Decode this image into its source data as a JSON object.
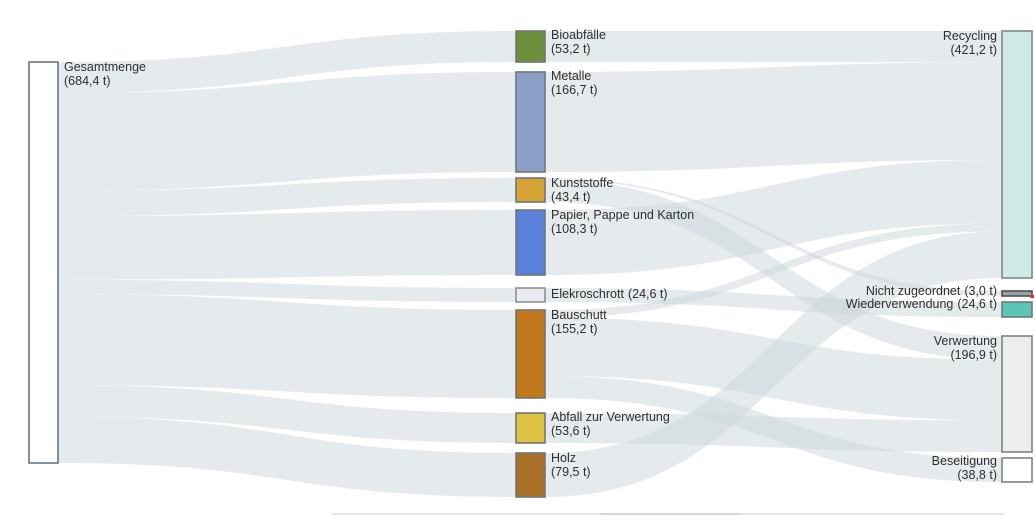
{
  "chart_data": {
    "type": "sankey",
    "unit": "t",
    "layout_hints": {
      "columns": [
        "total",
        "waste-category",
        "disposal-route"
      ],
      "flow_color": "#ccd6da",
      "flow_opacity": 0.5,
      "background": "#ffffff"
    },
    "nodes": [
      {
        "id": "gesamtmenge",
        "name": "Gesamtmenge",
        "amount": "(684,4 t)",
        "value": 684.4,
        "fill": "#ffffff",
        "stroke": "#66738c"
      },
      {
        "id": "bioabfaelle",
        "name": "Bioabfälle",
        "amount": "(53,2 t)",
        "value": 53.2,
        "fill": "#6d8f3b",
        "stroke": "#71767a"
      },
      {
        "id": "metalle",
        "name": "Metalle",
        "amount": "(166,7 t)",
        "value": 166.7,
        "fill": "#8d9fc7",
        "stroke": "#71767a"
      },
      {
        "id": "kunststoffe",
        "name": "Kunststoffe",
        "amount": "(43,4 t)",
        "value": 43.4,
        "fill": "#d6a335",
        "stroke": "#71767a"
      },
      {
        "id": "papier",
        "name": "Papier, Pappe und Karton",
        "amount": "(108,3 t)",
        "value": 108.3,
        "fill": "#5a80d9",
        "stroke": "#71767a"
      },
      {
        "id": "elekroschrott",
        "name": "Elekroschrott",
        "amount": "(24,6 t)",
        "value": 24.6,
        "fill": "#eaebf2",
        "stroke": "#8d9296"
      },
      {
        "id": "bauschutt",
        "name": "Bauschutt",
        "amount": "(155,2 t)",
        "value": 155.2,
        "fill": "#c1771c",
        "stroke": "#71767a"
      },
      {
        "id": "abfall_zur_verwertung",
        "name": "Abfall zur Verwertung",
        "amount": "(53,6 t)",
        "value": 53.6,
        "fill": "#ddc243",
        "stroke": "#71767a"
      },
      {
        "id": "holz",
        "name": "Holz",
        "amount": "(79,5 t)",
        "value": 79.5,
        "fill": "#a87028",
        "stroke": "#71767a"
      },
      {
        "id": "recycling",
        "name": "Recycling",
        "amount": "(421,2 t)",
        "value": 421.2,
        "fill": "#cfe9e4",
        "stroke": "#7d8a88"
      },
      {
        "id": "nicht_zugeordnet",
        "name": "Nicht zugeordnet",
        "amount": "(3,0 t)",
        "value": 3.0,
        "fill": "#9aa0a3",
        "stroke": "#4a4f52"
      },
      {
        "id": "wiederverwendung",
        "name": "Wiederverwendung",
        "amount": "(24,6 t)",
        "value": 24.6,
        "fill": "#5ec4b6",
        "stroke": "#71767a"
      },
      {
        "id": "verwertung",
        "name": "Verwertung",
        "amount": "(196,9 t)",
        "value": 196.9,
        "fill": "#ededed",
        "stroke": "#7d8382"
      },
      {
        "id": "beseitigung",
        "name": "Beseitigung",
        "amount": "(38,8 t)",
        "value": 38.8,
        "fill": "#ffffff",
        "stroke": "#7d8382"
      }
    ],
    "links": [
      {
        "source": "gesamtmenge",
        "target": "bioabfaelle",
        "value": 53.2
      },
      {
        "source": "gesamtmenge",
        "target": "metalle",
        "value": 166.7
      },
      {
        "source": "gesamtmenge",
        "target": "kunststoffe",
        "value": 43.4
      },
      {
        "source": "gesamtmenge",
        "target": "papier",
        "value": 108.3
      },
      {
        "source": "gesamtmenge",
        "target": "elekroschrott",
        "value": 24.6
      },
      {
        "source": "gesamtmenge",
        "target": "bauschutt",
        "value": 155.2
      },
      {
        "source": "gesamtmenge",
        "target": "abfall_zur_verwertung",
        "value": 53.6
      },
      {
        "source": "gesamtmenge",
        "target": "holz",
        "value": 79.5
      },
      {
        "source": "bioabfaelle",
        "target": "recycling",
        "value": 53.2
      },
      {
        "source": "metalle",
        "target": "recycling",
        "value": 166.7
      },
      {
        "source": "kunststoffe",
        "target": "nicht_zugeordnet",
        "value": 3.0
      },
      {
        "source": "kunststoffe",
        "target": "verwertung",
        "value": 40.4
      },
      {
        "source": "papier",
        "target": "recycling",
        "value": 108.3
      },
      {
        "source": "elekroschrott",
        "target": "wiederverwendung",
        "value": 24.6
      },
      {
        "source": "bauschutt",
        "target": "recycling",
        "value": 13.5
      },
      {
        "source": "bauschutt",
        "target": "verwertung",
        "value": 102.9
      },
      {
        "source": "bauschutt",
        "target": "beseitigung",
        "value": 38.8
      },
      {
        "source": "abfall_zur_verwertung",
        "target": "verwertung",
        "value": 53.6
      },
      {
        "source": "holz",
        "target": "recycling",
        "value": 79.5
      }
    ]
  }
}
